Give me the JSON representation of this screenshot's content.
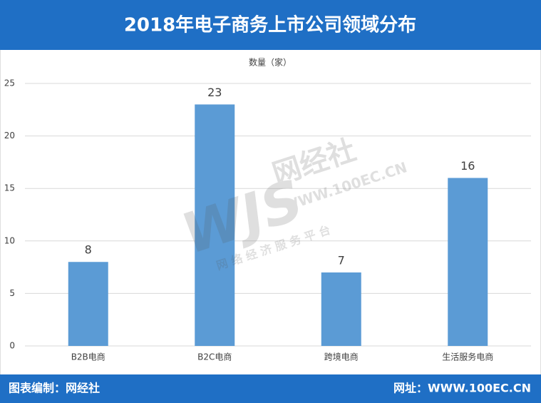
{
  "chart_data": {
    "type": "bar",
    "title": "2018年电子商务上市公司领域分布",
    "y_label": "数量（家）",
    "categories": [
      "B2B电商",
      "B2C电商",
      "跨境电商",
      "生活服务电商"
    ],
    "values": [
      8,
      23,
      7,
      16
    ],
    "color": "#5b9bd5",
    "ylim": [
      0,
      25
    ],
    "yticks": [
      0,
      5,
      10,
      15,
      20,
      25
    ],
    "grid": true
  },
  "watermark": {
    "logo": "WJS",
    "name": "网经社",
    "url": "WWW.100EC.CN",
    "slogan": "网 络 经 济 服 务 平 台"
  },
  "footer": {
    "left": "图表编制：网经社",
    "right": "网址：WWW.100EC.CN"
  }
}
